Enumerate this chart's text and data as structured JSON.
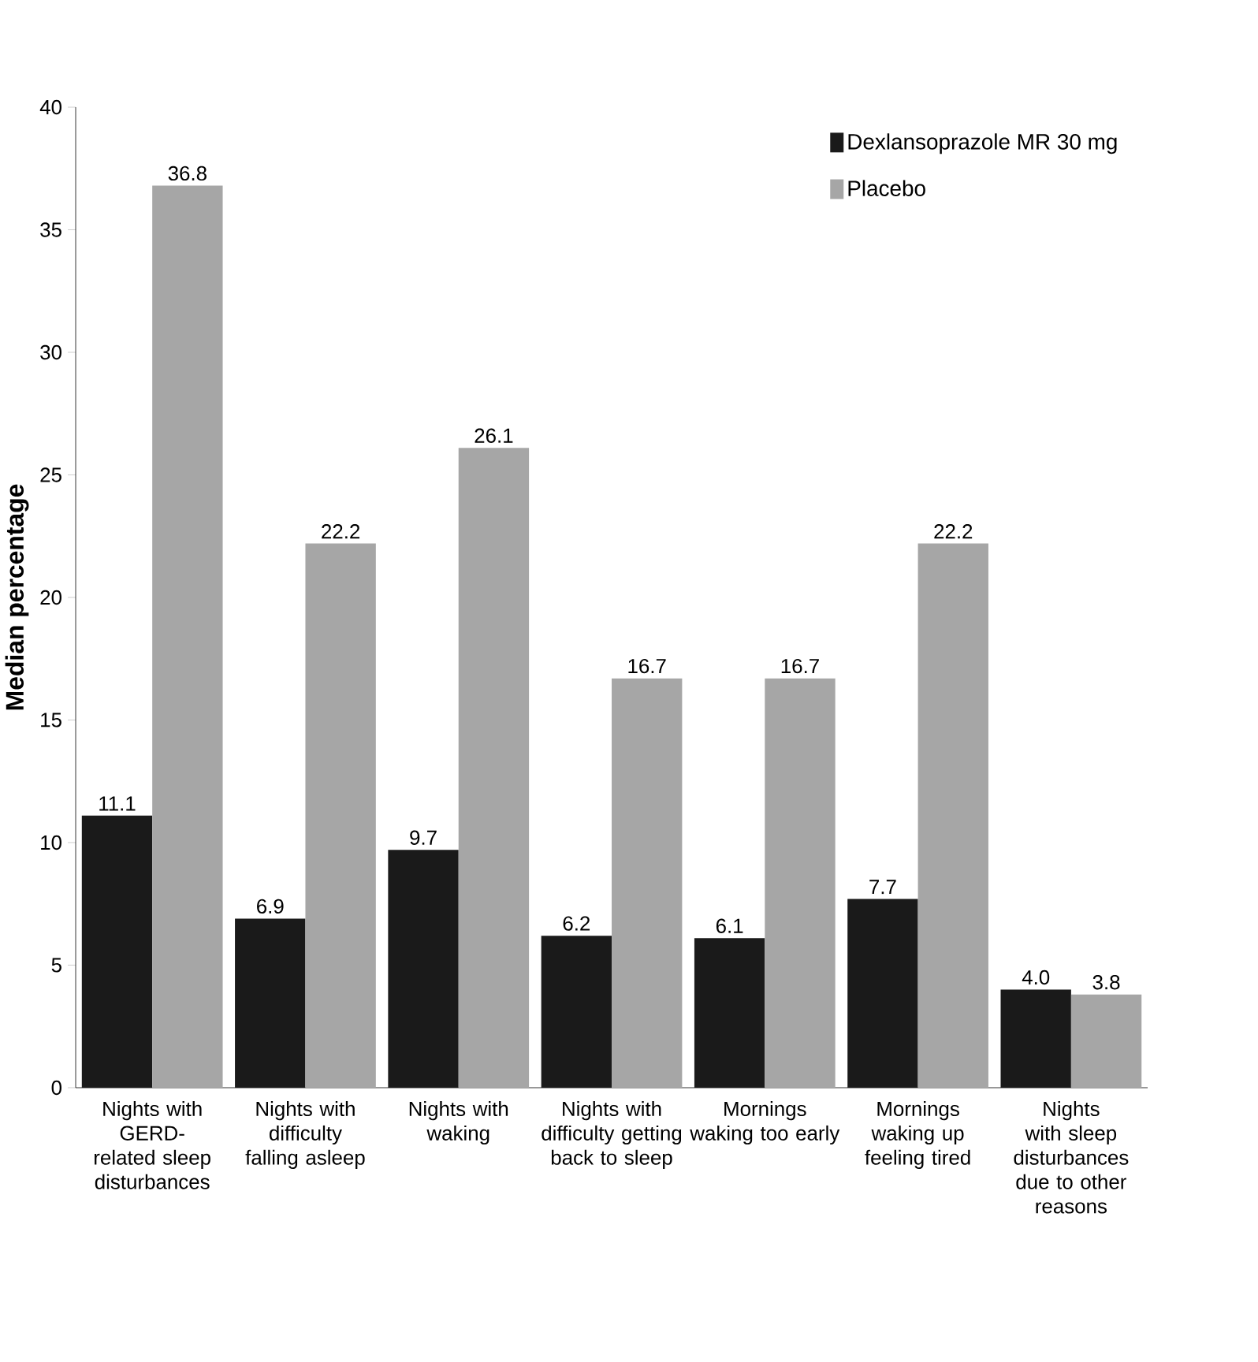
{
  "chart_data": {
    "type": "bar",
    "ylabel": "Median percentage",
    "categories": [
      "Nights with GERD-related sleep disturbances",
      "Nights with difficulty falling asleep",
      "Nights with waking",
      "Nights with difficulty getting back to sleep",
      "Mornings waking too early",
      "Mornings waking up feeling tired",
      "Nights with sleep disturbances due to other reasons"
    ],
    "series": [
      {
        "name": "Dexlansoprazole MR 30 mg",
        "color": "#1a1a1a",
        "values": [
          11.1,
          6.9,
          9.7,
          6.2,
          6.1,
          7.7,
          4.0
        ],
        "value_labels": [
          "11.1",
          "6.9",
          "9.7",
          "6.2",
          "6.1",
          "7.7",
          "4.0"
        ]
      },
      {
        "name": "Placebo",
        "color": "#a6a6a6",
        "values": [
          36.8,
          22.2,
          26.1,
          16.7,
          16.7,
          22.2,
          3.8
        ],
        "value_labels": [
          "36.8",
          "22.2",
          "26.1",
          "16.7",
          "16.7",
          "22.2",
          "3.8"
        ]
      }
    ],
    "ylim": [
      0,
      40
    ],
    "yticks": [
      0,
      5,
      10,
      15,
      20,
      25,
      30,
      35,
      40
    ],
    "legend": "top right",
    "grid": false
  }
}
